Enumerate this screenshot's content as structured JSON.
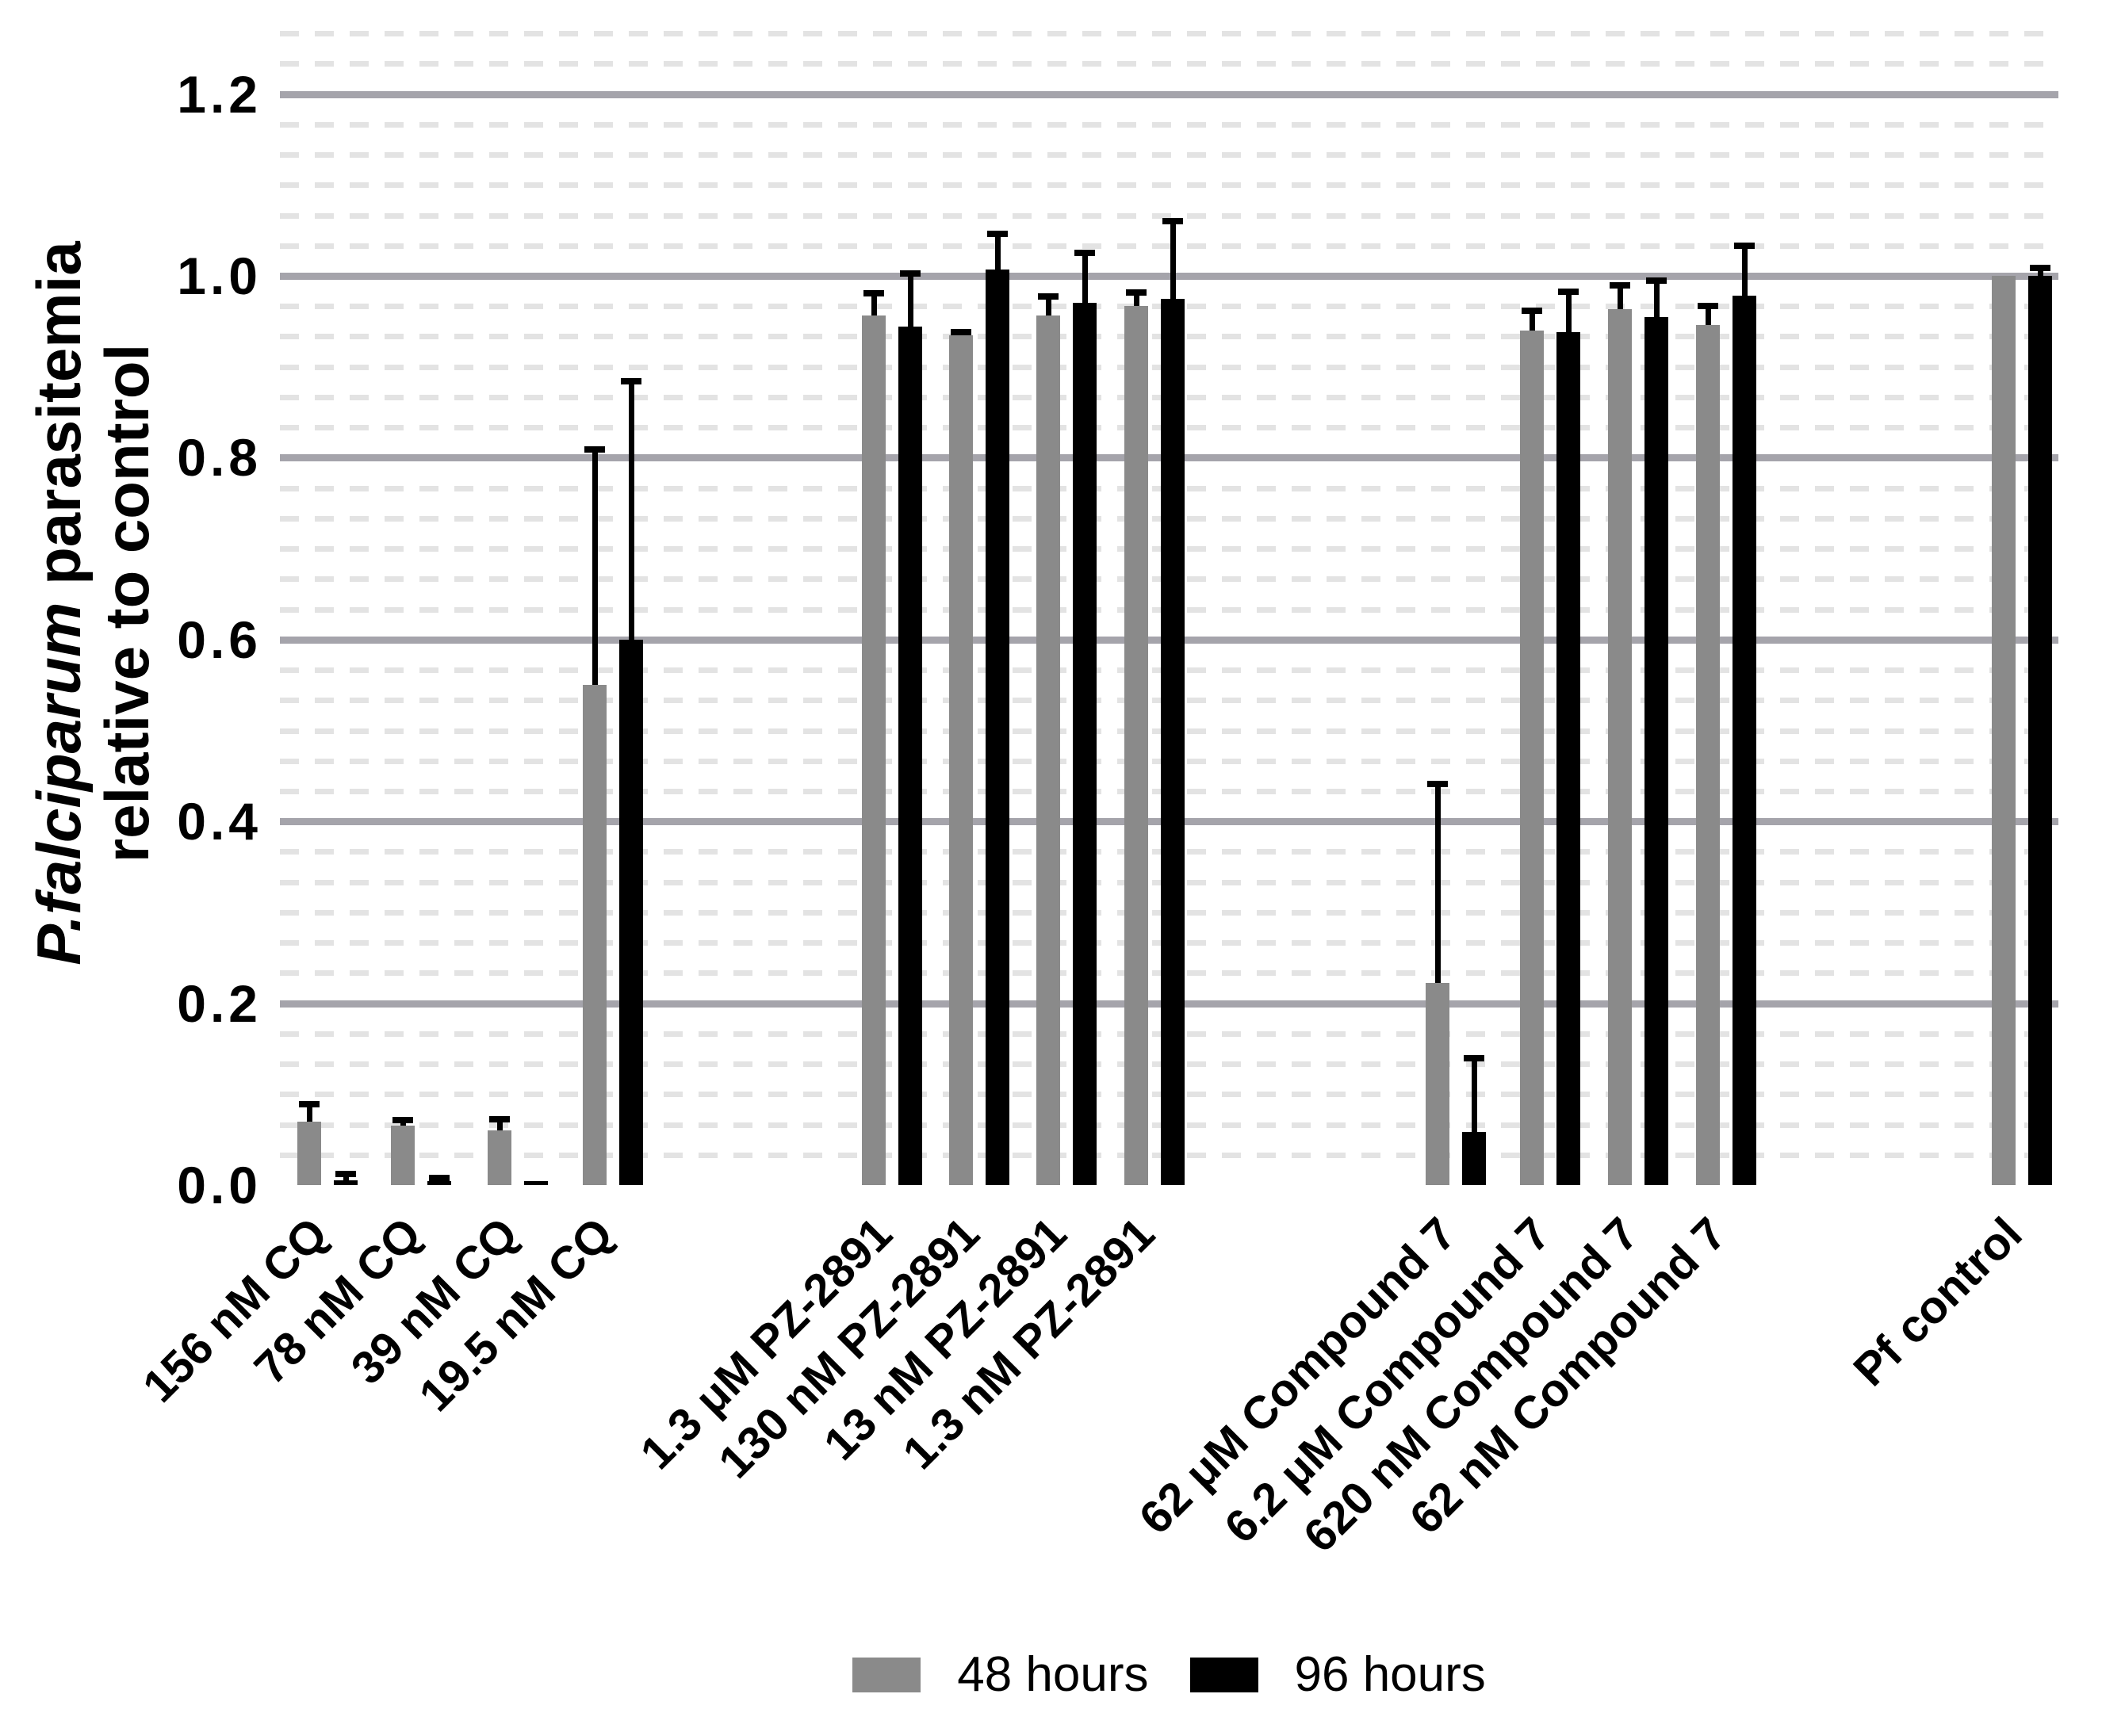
{
  "figure": {
    "background": "#ffffff"
  },
  "y_axis": {
    "tick_labels": [
      "1.2",
      "1.0",
      "0.8",
      "0.6",
      "0.4",
      "0.2",
      "0.0"
    ],
    "title_italic": "P.falciparum",
    "title_rest": " parasitemia",
    "title_line2": "relative to control"
  },
  "legend": {
    "items": [
      {
        "label": "48 hours",
        "color": "#8a8a8a"
      },
      {
        "label": "96 hours",
        "color": "#000000"
      }
    ]
  },
  "colors": {
    "bar_48h": "#8a8a8a",
    "bar_96h": "#000000",
    "major_gridline": "#a5a4ab",
    "minor_gridline": "#e3e3e3",
    "text": "#000000"
  },
  "chart_data": {
    "type": "bar",
    "title": "",
    "xlabel": "",
    "ylabel": "P.falciparum parasitemia relative to control",
    "ylim": [
      0,
      1.28
    ],
    "y_major_step": 0.2,
    "y_minor_divisions_per_major": 6,
    "grid": "major solid, minor dashed",
    "legend_position": "bottom-center",
    "categories": [
      "156 nM CQ",
      "78 nM CQ",
      "39 nM CQ",
      "19.5 nM CQ",
      "1.3 μM PZ-2891",
      "130 nM PZ-2891",
      "13 nM PZ-2891",
      "1.3 nM PZ-2891",
      "62 μM Compound 7",
      "6.2 μM Compound 7",
      "620 nM Compound 7",
      "62 nM Compound 7",
      "Pf control"
    ],
    "category_families": [
      "CQ",
      "CQ",
      "CQ",
      "CQ",
      "PZ-2891",
      "PZ-2891",
      "PZ-2891",
      "PZ-2891",
      "Compound 7",
      "Compound 7",
      "Compound 7",
      "Compound 7",
      "control"
    ],
    "series": [
      {
        "name": "48 hours",
        "color": "#8a8a8a",
        "values": [
          0.07,
          0.065,
          0.06,
          0.55,
          0.956,
          0.935,
          0.956,
          0.967,
          0.222,
          0.94,
          0.963,
          0.946,
          1.0
        ],
        "errors_up": [
          0.02,
          0.007,
          0.013,
          0.26,
          0.025,
          0.004,
          0.022,
          0.016,
          0.22,
          0.023,
          0.027,
          0.022,
          0.0
        ]
      },
      {
        "name": "96 hours",
        "color": "#000000",
        "values": [
          0.005,
          0.004,
          0.004,
          0.6,
          0.944,
          1.007,
          0.97,
          0.975,
          0.058,
          0.938,
          0.955,
          0.978,
          1.0
        ],
        "errors_up": [
          0.008,
          0.004,
          0.002,
          0.285,
          0.059,
          0.04,
          0.056,
          0.086,
          0.082,
          0.045,
          0.041,
          0.056,
          0.01
        ]
      }
    ]
  }
}
